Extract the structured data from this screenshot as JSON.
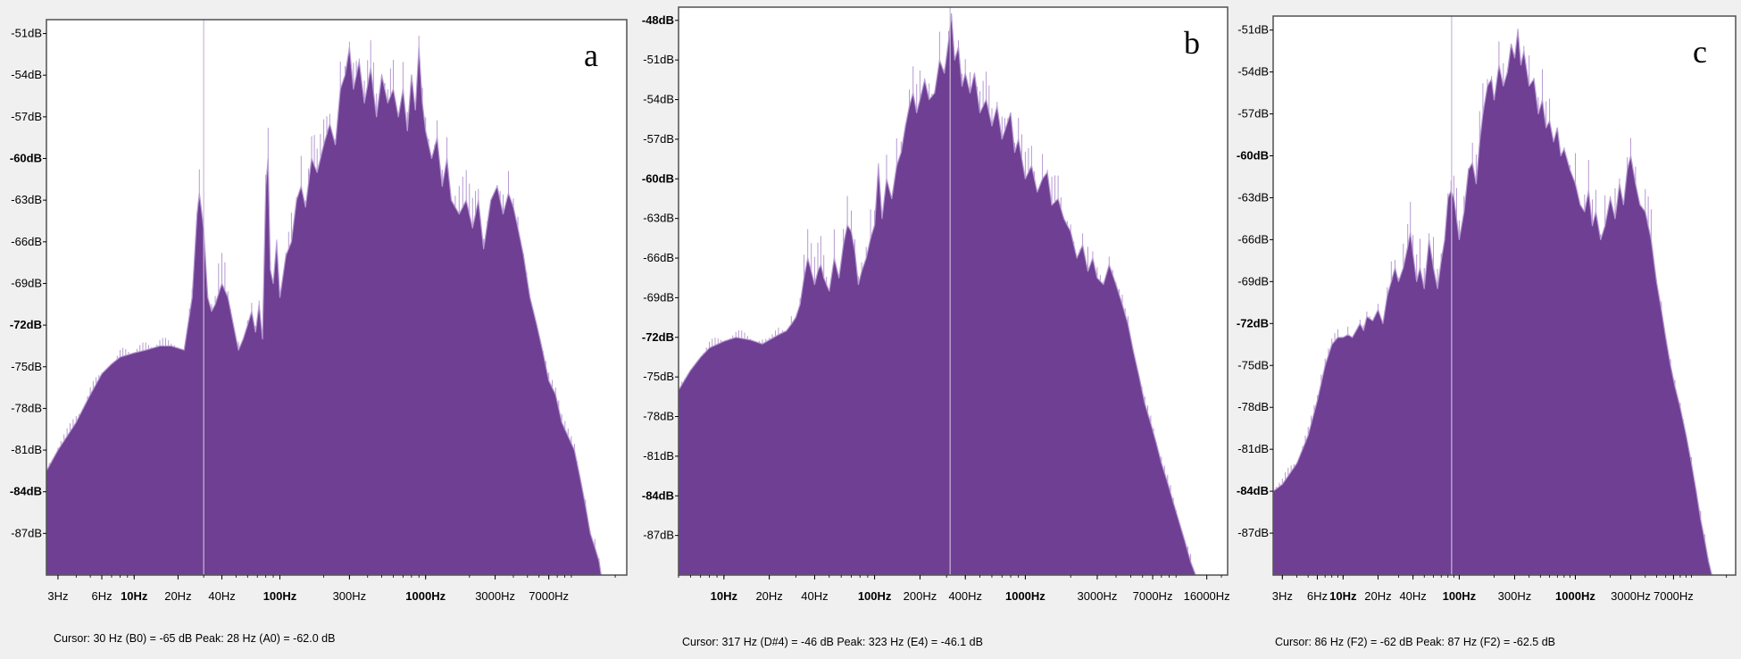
{
  "colors": {
    "fill": "#6f3f93",
    "edge": "#b79ad2",
    "plot_bg": "#ffffff",
    "frame": "#505050",
    "cursor_line": "#c8b8d8"
  },
  "chart_data": [
    {
      "type": "area",
      "panel_label": "a",
      "x_scale": "log",
      "ylim": [
        -90,
        -50
      ],
      "y_ticks": [
        "-51dB",
        "-54dB",
        "-57dB",
        "-60dB",
        "-63dB",
        "-66dB",
        "-69dB",
        "-72dB",
        "-75dB",
        "-78dB",
        "-81dB",
        "-84dB",
        "-87dB"
      ],
      "y_tick_values": [
        -51,
        -54,
        -57,
        -60,
        -63,
        -66,
        -69,
        -72,
        -75,
        -78,
        -81,
        -84,
        -87
      ],
      "y_bold": [
        "-60dB",
        "-72dB",
        "-84dB"
      ],
      "x_ticks": [
        "3Hz",
        "6Hz",
        "10Hz",
        "20Hz",
        "40Hz",
        "100Hz",
        "300Hz",
        "1000Hz",
        "3000Hz",
        "7000Hz"
      ],
      "x_tick_values": [
        3,
        6,
        10,
        20,
        40,
        100,
        300,
        1000,
        3000,
        7000
      ],
      "x_bold": [
        "10Hz",
        "100Hz",
        "1000Hz"
      ],
      "xlim": [
        2.5,
        24000
      ],
      "cursor_hz": 30,
      "status": "Cursor: 30 Hz (B0) = -65 dB    Peak: 28 Hz (A0) = -62.0 dB",
      "spectrum": [
        [
          2.5,
          -82.5
        ],
        [
          3,
          -81
        ],
        [
          4,
          -79
        ],
        [
          5,
          -77
        ],
        [
          6,
          -75.5
        ],
        [
          7,
          -74.8
        ],
        [
          8,
          -74.3
        ],
        [
          10,
          -74
        ],
        [
          12,
          -73.8
        ],
        [
          15,
          -73.5
        ],
        [
          18,
          -73.5
        ],
        [
          22,
          -73.8
        ],
        [
          25,
          -70
        ],
        [
          27,
          -64
        ],
        [
          28,
          -62.5
        ],
        [
          30,
          -65
        ],
        [
          32,
          -70
        ],
        [
          34,
          -71
        ],
        [
          36,
          -70.5
        ],
        [
          40,
          -69
        ],
        [
          44,
          -70
        ],
        [
          48,
          -72
        ],
        [
          52,
          -73.8
        ],
        [
          56,
          -73
        ],
        [
          60,
          -72
        ],
        [
          64,
          -71
        ],
        [
          68,
          -72.5
        ],
        [
          72,
          -70.5
        ],
        [
          76,
          -73
        ],
        [
          80,
          -62
        ],
        [
          83,
          -60
        ],
        [
          86,
          -68
        ],
        [
          90,
          -69
        ],
        [
          95,
          -66
        ],
        [
          100,
          -70
        ],
        [
          110,
          -67
        ],
        [
          120,
          -66
        ],
        [
          130,
          -63
        ],
        [
          140,
          -62
        ],
        [
          150,
          -63.5
        ],
        [
          165,
          -60
        ],
        [
          180,
          -61
        ],
        [
          200,
          -59
        ],
        [
          220,
          -57.5
        ],
        [
          240,
          -59
        ],
        [
          260,
          -55
        ],
        [
          280,
          -54
        ],
        [
          300,
          -52
        ],
        [
          320,
          -55
        ],
        [
          350,
          -53
        ],
        [
          380,
          -56
        ],
        [
          420,
          -53.5
        ],
        [
          460,
          -57
        ],
        [
          500,
          -54
        ],
        [
          550,
          -56
        ],
        [
          600,
          -55
        ],
        [
          650,
          -57
        ],
        [
          700,
          -55
        ],
        [
          750,
          -58
        ],
        [
          800,
          -54
        ],
        [
          850,
          -56.5
        ],
        [
          900,
          -52
        ],
        [
          950,
          -56
        ],
        [
          1000,
          -58
        ],
        [
          1100,
          -60
        ],
        [
          1200,
          -58.5
        ],
        [
          1300,
          -62
        ],
        [
          1400,
          -60
        ],
        [
          1500,
          -63
        ],
        [
          1700,
          -64
        ],
        [
          1900,
          -63
        ],
        [
          2100,
          -65
        ],
        [
          2300,
          -63
        ],
        [
          2500,
          -66.5
        ],
        [
          2800,
          -63
        ],
        [
          3100,
          -62
        ],
        [
          3400,
          -64
        ],
        [
          3700,
          -62.5
        ],
        [
          4000,
          -63.5
        ],
        [
          4300,
          -65
        ],
        [
          4700,
          -67
        ],
        [
          5200,
          -70
        ],
        [
          5800,
          -72
        ],
        [
          6400,
          -74
        ],
        [
          7000,
          -76
        ],
        [
          7800,
          -77
        ],
        [
          8600,
          -79
        ],
        [
          9500,
          -80
        ],
        [
          10500,
          -81
        ],
        [
          11500,
          -83
        ],
        [
          12500,
          -85
        ],
        [
          13500,
          -87
        ],
        [
          14500,
          -88
        ],
        [
          15500,
          -89
        ],
        [
          16000,
          -90
        ]
      ]
    },
    {
      "type": "area",
      "panel_label": "b",
      "x_scale": "log",
      "ylim": [
        -90,
        -47
      ],
      "y_ticks": [
        "-48dB",
        "-51dB",
        "-54dB",
        "-57dB",
        "-60dB",
        "-63dB",
        "-66dB",
        "-69dB",
        "-72dB",
        "-75dB",
        "-78dB",
        "-81dB",
        "-84dB",
        "-87dB"
      ],
      "y_tick_values": [
        -48,
        -51,
        -54,
        -57,
        -60,
        -63,
        -66,
        -69,
        -72,
        -75,
        -78,
        -81,
        -84,
        -87
      ],
      "y_bold": [
        "-48dB",
        "-60dB",
        "-72dB",
        "-84dB"
      ],
      "x_ticks": [
        "10Hz",
        "20Hz",
        "40Hz",
        "100Hz",
        "200Hz",
        "400Hz",
        "1000Hz",
        "3000Hz",
        "7000Hz",
        "16000Hz"
      ],
      "x_tick_values": [
        10,
        20,
        40,
        100,
        200,
        400,
        1000,
        3000,
        7000,
        16000
      ],
      "x_bold": [
        "10Hz",
        "100Hz",
        "1000Hz"
      ],
      "xlim": [
        5,
        22000
      ],
      "cursor_hz": 317,
      "status": "Cursor: 317 Hz (D#4) = -46 dB    Peak: 323 Hz (E4) = -46.1 dB",
      "spectrum": [
        [
          5,
          -76
        ],
        [
          6,
          -74.5
        ],
        [
          7,
          -73.5
        ],
        [
          8,
          -72.8
        ],
        [
          10,
          -72.3
        ],
        [
          12,
          -72
        ],
        [
          15,
          -72.2
        ],
        [
          18,
          -72.5
        ],
        [
          20,
          -72.2
        ],
        [
          23,
          -71.8
        ],
        [
          26,
          -71.5
        ],
        [
          28,
          -71
        ],
        [
          30,
          -70.5
        ],
        [
          32,
          -69.5
        ],
        [
          34,
          -67.5
        ],
        [
          36,
          -66
        ],
        [
          38,
          -67
        ],
        [
          40,
          -68
        ],
        [
          42,
          -67
        ],
        [
          44,
          -66.5
        ],
        [
          46,
          -67.5
        ],
        [
          50,
          -68.5
        ],
        [
          54,
          -66
        ],
        [
          58,
          -67.5
        ],
        [
          62,
          -65
        ],
        [
          66,
          -63.5
        ],
        [
          70,
          -64
        ],
        [
          74,
          -65.5
        ],
        [
          78,
          -68
        ],
        [
          82,
          -67
        ],
        [
          88,
          -66
        ],
        [
          94,
          -64.5
        ],
        [
          100,
          -63.5
        ],
        [
          106,
          -59
        ],
        [
          112,
          -63
        ],
        [
          120,
          -60
        ],
        [
          130,
          -61.5
        ],
        [
          140,
          -59
        ],
        [
          150,
          -58
        ],
        [
          160,
          -56
        ],
        [
          170,
          -54.5
        ],
        [
          180,
          -53.5
        ],
        [
          190,
          -55
        ],
        [
          200,
          -54
        ],
        [
          215,
          -52.5
        ],
        [
          230,
          -54
        ],
        [
          250,
          -53.5
        ],
        [
          270,
          -51
        ],
        [
          290,
          -52
        ],
        [
          310,
          -49.5
        ],
        [
          323,
          -47.5
        ],
        [
          340,
          -51
        ],
        [
          360,
          -50
        ],
        [
          380,
          -53
        ],
        [
          400,
          -52
        ],
        [
          430,
          -53.5
        ],
        [
          460,
          -52
        ],
        [
          500,
          -55
        ],
        [
          550,
          -54
        ],
        [
          600,
          -56
        ],
        [
          650,
          -54.5
        ],
        [
          700,
          -57
        ],
        [
          800,
          -55
        ],
        [
          850,
          -58
        ],
        [
          900,
          -57
        ],
        [
          1000,
          -60
        ],
        [
          1100,
          -59
        ],
        [
          1200,
          -61
        ],
        [
          1300,
          -60
        ],
        [
          1400,
          -59.5
        ],
        [
          1500,
          -62
        ],
        [
          1650,
          -61.5
        ],
        [
          1800,
          -63
        ],
        [
          2000,
          -64
        ],
        [
          2200,
          -66
        ],
        [
          2400,
          -65
        ],
        [
          2600,
          -67
        ],
        [
          2800,
          -66
        ],
        [
          3000,
          -67.5
        ],
        [
          3300,
          -68
        ],
        [
          3600,
          -66.5
        ],
        [
          4000,
          -68
        ],
        [
          4400,
          -69.5
        ],
        [
          4800,
          -71
        ],
        [
          5200,
          -73
        ],
        [
          5700,
          -75
        ],
        [
          6200,
          -77
        ],
        [
          6800,
          -78.5
        ],
        [
          7400,
          -80
        ],
        [
          8000,
          -81.5
        ],
        [
          8800,
          -83
        ],
        [
          9600,
          -84.5
        ],
        [
          10500,
          -86
        ],
        [
          11500,
          -87.5
        ],
        [
          12500,
          -89
        ],
        [
          13500,
          -90
        ]
      ]
    },
    {
      "type": "area",
      "panel_label": "c",
      "x_scale": "log",
      "ylim": [
        -90,
        -50
      ],
      "y_ticks": [
        "-51dB",
        "-54dB",
        "-57dB",
        "-60dB",
        "-63dB",
        "-66dB",
        "-69dB",
        "-72dB",
        "-75dB",
        "-78dB",
        "-81dB",
        "-84dB",
        "-87dB"
      ],
      "y_tick_values": [
        -51,
        -54,
        -57,
        -60,
        -63,
        -66,
        -69,
        -72,
        -75,
        -78,
        -81,
        -84,
        -87
      ],
      "y_bold": [
        "-60dB",
        "-72dB",
        "-84dB"
      ],
      "x_ticks": [
        "3Hz",
        "6Hz",
        "10Hz",
        "20Hz",
        "40Hz",
        "100Hz",
        "300Hz",
        "1000Hz",
        "3000Hz",
        "7000Hz"
      ],
      "x_tick_values": [
        3,
        6,
        10,
        20,
        40,
        100,
        300,
        1000,
        3000,
        7000
      ],
      "x_bold": [
        "10Hz",
        "100Hz",
        "1000Hz"
      ],
      "xlim": [
        2.5,
        24000
      ],
      "cursor_hz": 86,
      "status": "Cursor: 86 Hz (F2) = -62 dB    Peak: 87 Hz (F2) = -62.5 dB",
      "spectrum": [
        [
          2.5,
          -84
        ],
        [
          3,
          -83.5
        ],
        [
          4,
          -82
        ],
        [
          5,
          -80
        ],
        [
          6,
          -77.5
        ],
        [
          7,
          -75
        ],
        [
          8,
          -73.5
        ],
        [
          9,
          -73
        ],
        [
          10,
          -73
        ],
        [
          11,
          -72.8
        ],
        [
          12,
          -73
        ],
        [
          13,
          -72.5
        ],
        [
          14,
          -72
        ],
        [
          15,
          -72.5
        ],
        [
          16,
          -71.5
        ],
        [
          18,
          -71.8
        ],
        [
          20,
          -71
        ],
        [
          22,
          -72
        ],
        [
          24,
          -70
        ],
        [
          26,
          -69
        ],
        [
          28,
          -68
        ],
        [
          30,
          -69
        ],
        [
          33,
          -68
        ],
        [
          36,
          -66.5
        ],
        [
          38,
          -65.5
        ],
        [
          40,
          -67
        ],
        [
          43,
          -69
        ],
        [
          46,
          -68
        ],
        [
          50,
          -69.5
        ],
        [
          55,
          -66
        ],
        [
          60,
          -68
        ],
        [
          65,
          -69.5
        ],
        [
          70,
          -67.5
        ],
        [
          75,
          -66
        ],
        [
          80,
          -63
        ],
        [
          85,
          -62.5
        ],
        [
          90,
          -63
        ],
        [
          95,
          -64.5
        ],
        [
          100,
          -66
        ],
        [
          110,
          -64
        ],
        [
          120,
          -61
        ],
        [
          130,
          -60.5
        ],
        [
          140,
          -62
        ],
        [
          150,
          -59
        ],
        [
          160,
          -57
        ],
        [
          175,
          -55
        ],
        [
          190,
          -54.5
        ],
        [
          200,
          -56
        ],
        [
          220,
          -53.5
        ],
        [
          240,
          -55
        ],
        [
          260,
          -54
        ],
        [
          280,
          -52
        ],
        [
          300,
          -53
        ],
        [
          320,
          -51
        ],
        [
          340,
          -53.5
        ],
        [
          360,
          -52.5
        ],
        [
          400,
          -55
        ],
        [
          440,
          -54.5
        ],
        [
          480,
          -57
        ],
        [
          520,
          -56
        ],
        [
          560,
          -58
        ],
        [
          600,
          -57.5
        ],
        [
          650,
          -59
        ],
        [
          700,
          -58
        ],
        [
          750,
          -60
        ],
        [
          800,
          -59.5
        ],
        [
          900,
          -61
        ],
        [
          1000,
          -62
        ],
        [
          1100,
          -63.5
        ],
        [
          1200,
          -64
        ],
        [
          1300,
          -62.5
        ],
        [
          1400,
          -65
        ],
        [
          1500,
          -64
        ],
        [
          1650,
          -66
        ],
        [
          1800,
          -65
        ],
        [
          2000,
          -63
        ],
        [
          2200,
          -64.5
        ],
        [
          2400,
          -62
        ],
        [
          2600,
          -63.5
        ],
        [
          2800,
          -61
        ],
        [
          3000,
          -60
        ],
        [
          3300,
          -62
        ],
        [
          3600,
          -63.5
        ],
        [
          4000,
          -64
        ],
        [
          4500,
          -66
        ],
        [
          5000,
          -69
        ],
        [
          5500,
          -71
        ],
        [
          6000,
          -73
        ],
        [
          6600,
          -75
        ],
        [
          7200,
          -76.5
        ],
        [
          8000,
          -78
        ],
        [
          9000,
          -80
        ],
        [
          10000,
          -82
        ],
        [
          11000,
          -84
        ],
        [
          12000,
          -86
        ],
        [
          13000,
          -87.5
        ],
        [
          14000,
          -89
        ],
        [
          15000,
          -90
        ]
      ]
    }
  ]
}
